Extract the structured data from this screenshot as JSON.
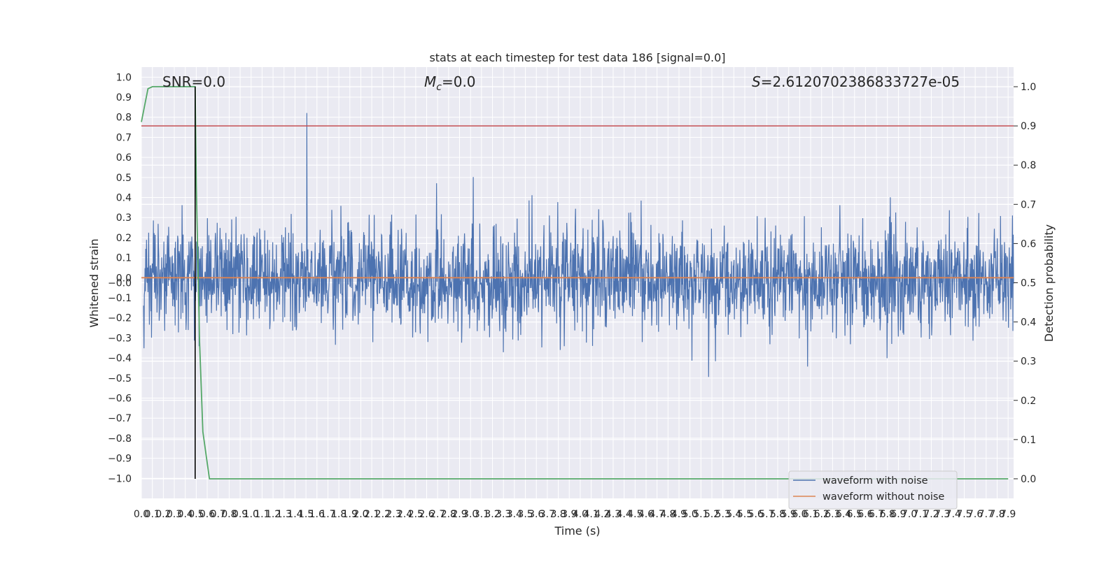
{
  "chart_data": {
    "type": "line",
    "title": "stats at each timestep for test data 186 [signal=0.0]",
    "xlabel": "Time (s)",
    "ylabel": "Whitened strain",
    "ylabel_right": "Detection probability",
    "xlim": [
      0.0,
      7.95
    ],
    "ylim": [
      -1.1,
      1.05
    ],
    "ylim_right": [
      -0.05,
      1.05
    ],
    "x_ticks": [
      "0.0",
      "0.1",
      "0.2",
      "0.3",
      "0.4",
      "0.5",
      "0.6",
      "0.7",
      "0.8",
      "0.9",
      "1.0",
      "1.1",
      "1.2",
      "1.3",
      "1.4",
      "1.5",
      "1.6",
      "1.7",
      "1.8",
      "1.9",
      "2.0",
      "2.1",
      "2.2",
      "2.3",
      "2.4",
      "2.5",
      "2.6",
      "2.7",
      "2.8",
      "2.9",
      "3.0",
      "3.1",
      "3.2",
      "3.3",
      "3.4",
      "3.5",
      "3.6",
      "3.7",
      "3.8",
      "3.9",
      "4.0",
      "4.1",
      "4.2",
      "4.3",
      "4.4",
      "4.5",
      "4.6",
      "4.7",
      "4.8",
      "4.9",
      "5.0",
      "5.1",
      "5.2",
      "5.3",
      "5.4",
      "5.5",
      "5.6",
      "5.7",
      "5.8",
      "5.9",
      "6.0",
      "6.1",
      "6.2",
      "6.3",
      "6.4",
      "6.5",
      "6.6",
      "6.7",
      "6.8",
      "6.9",
      "7.0",
      "7.1",
      "7.2",
      "7.3",
      "7.4",
      "7.5",
      "7.6",
      "7.7",
      "7.8",
      "7.9"
    ],
    "y_ticks_left": [
      "1.0",
      "0.9",
      "0.8",
      "0.7",
      "0.6",
      "0.5",
      "0.4",
      "0.3",
      "0.2",
      "0.1",
      "0.0",
      "−0.0",
      "−0.1",
      "−0.2",
      "−0.3",
      "−0.4",
      "−0.5",
      "−0.6",
      "−0.7",
      "−0.8",
      "−0.9",
      "−1.0"
    ],
    "y_ticks_right": [
      "1.0",
      "0.9",
      "0.8",
      "0.7",
      "0.6",
      "0.5",
      "0.4",
      "0.3",
      "0.2",
      "0.1",
      "0.0"
    ],
    "annotations": {
      "snr": "SNR=0.0",
      "mc_symbol": "M",
      "mc_sub": "c",
      "mc_value": "=0.0",
      "s_symbol": "S",
      "s_value": "=2.6120702386833727e-05"
    },
    "threshold": {
      "value": 0.9,
      "axis": "right",
      "color": "#c44e52"
    },
    "marker_time": 0.49,
    "series": [
      {
        "name": "waveform with noise",
        "axis": "left",
        "color": "#4c72b0",
        "description": "whitened noise, approx. ±0.4 typical with peaks to ±0.95"
      },
      {
        "name": "waveform without noise",
        "axis": "left",
        "color": "#dd8452",
        "values_constant": 0.0
      },
      {
        "name": "",
        "axis": "right",
        "color": "#55a868",
        "x": [
          0.0,
          0.06,
          0.1,
          0.2,
          0.3,
          0.4,
          0.49,
          0.5,
          0.53,
          0.56,
          0.62,
          1.0,
          7.9
        ],
        "y": [
          0.91,
          0.995,
          1.0,
          1.0,
          1.0,
          1.0,
          1.0,
          0.75,
          0.35,
          0.12,
          0.0,
          0.0,
          0.0
        ]
      }
    ],
    "legend": {
      "placement": "lower-right",
      "entries": [
        "waveform with noise",
        "waveform without noise"
      ]
    },
    "grid": true
  }
}
